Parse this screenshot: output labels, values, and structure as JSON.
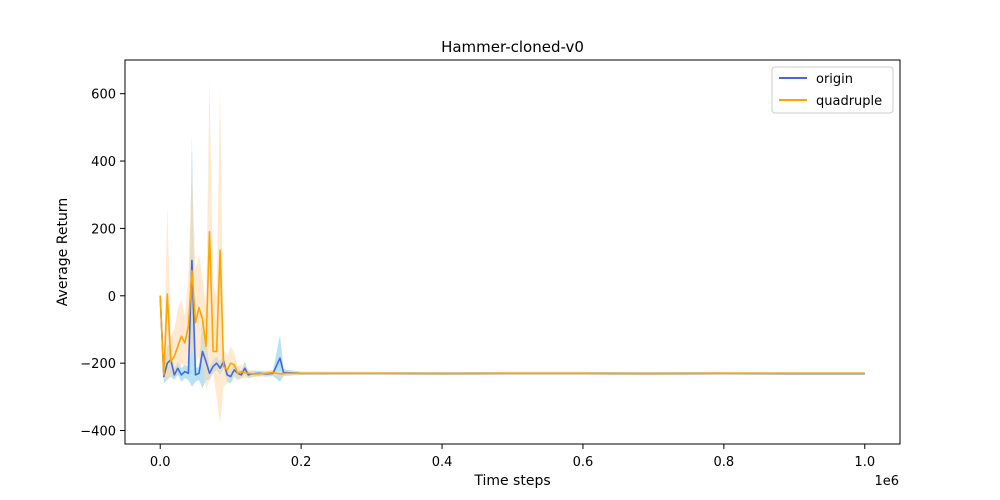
{
  "chart_data": {
    "type": "line",
    "title": "Hammer-cloned-v0",
    "xlabel": "Time steps",
    "ylabel": "Average Return",
    "x_offset_label": "1e6",
    "xlim": [
      -0.05,
      1.05
    ],
    "ylim": [
      -440,
      700
    ],
    "x_ticks": [
      0.0,
      0.2,
      0.4,
      0.6,
      0.8,
      1.0
    ],
    "x_tick_labels": [
      "0.0",
      "0.2",
      "0.4",
      "0.6",
      "0.8",
      "1.0"
    ],
    "y_ticks": [
      -400,
      -200,
      0,
      200,
      400,
      600
    ],
    "y_tick_labels": [
      "−400",
      "−200",
      "0",
      "200",
      "400",
      "600"
    ],
    "grid": false,
    "legend_position": "top-right",
    "series": [
      {
        "name": "origin",
        "color": "#4169e1",
        "band_color": "#87ceeb",
        "points": [
          [
            0.0,
            0
          ],
          [
            0.005,
            -240
          ],
          [
            0.01,
            -200
          ],
          [
            0.015,
            -190
          ],
          [
            0.02,
            -235
          ],
          [
            0.025,
            -215
          ],
          [
            0.03,
            -235
          ],
          [
            0.035,
            -225
          ],
          [
            0.04,
            -230
          ],
          [
            0.045,
            105
          ],
          [
            0.05,
            -235
          ],
          [
            0.055,
            -230
          ],
          [
            0.06,
            -165
          ],
          [
            0.065,
            -195
          ],
          [
            0.07,
            -230
          ],
          [
            0.075,
            -210
          ],
          [
            0.08,
            -200
          ],
          [
            0.085,
            -215
          ],
          [
            0.09,
            -195
          ],
          [
            0.095,
            -235
          ],
          [
            0.1,
            -240
          ],
          [
            0.105,
            -220
          ],
          [
            0.11,
            -230
          ],
          [
            0.115,
            -235
          ],
          [
            0.12,
            -215
          ],
          [
            0.125,
            -235
          ],
          [
            0.13,
            -232
          ],
          [
            0.14,
            -230
          ],
          [
            0.15,
            -232
          ],
          [
            0.16,
            -230
          ],
          [
            0.17,
            -185
          ],
          [
            0.175,
            -228
          ],
          [
            0.2,
            -230
          ],
          [
            0.3,
            -230
          ],
          [
            0.4,
            -231
          ],
          [
            0.5,
            -230
          ],
          [
            0.6,
            -230
          ],
          [
            0.7,
            -231
          ],
          [
            0.8,
            -230
          ],
          [
            0.9,
            -231
          ],
          [
            1.0,
            -231
          ]
        ],
        "band": [
          [
            0.0,
            0,
            0
          ],
          [
            0.005,
            -260,
            -220
          ],
          [
            0.01,
            -250,
            -150
          ],
          [
            0.015,
            -240,
            -140
          ],
          [
            0.02,
            -250,
            -215
          ],
          [
            0.025,
            -235,
            -195
          ],
          [
            0.03,
            -255,
            -215
          ],
          [
            0.035,
            -245,
            -205
          ],
          [
            0.04,
            -250,
            -210
          ],
          [
            0.045,
            -270,
            480
          ],
          [
            0.05,
            -255,
            -215
          ],
          [
            0.055,
            -250,
            -210
          ],
          [
            0.06,
            -275,
            -50
          ],
          [
            0.065,
            -250,
            -130
          ],
          [
            0.07,
            -250,
            -210
          ],
          [
            0.075,
            -230,
            -190
          ],
          [
            0.08,
            -220,
            -180
          ],
          [
            0.085,
            -235,
            -195
          ],
          [
            0.09,
            -215,
            -175
          ],
          [
            0.095,
            -255,
            -215
          ],
          [
            0.1,
            -260,
            -220
          ],
          [
            0.105,
            -240,
            -200
          ],
          [
            0.11,
            -250,
            -210
          ],
          [
            0.115,
            -245,
            -225
          ],
          [
            0.12,
            -235,
            -195
          ],
          [
            0.125,
            -245,
            -225
          ],
          [
            0.13,
            -242,
            -222
          ],
          [
            0.14,
            -238,
            -222
          ],
          [
            0.15,
            -240,
            -224
          ],
          [
            0.16,
            -238,
            -222
          ],
          [
            0.17,
            -255,
            -115
          ],
          [
            0.175,
            -238,
            -218
          ],
          [
            0.2,
            -235,
            -225
          ],
          [
            0.3,
            -234,
            -226
          ],
          [
            0.4,
            -235,
            -227
          ],
          [
            0.5,
            -234,
            -226
          ],
          [
            0.6,
            -234,
            -226
          ],
          [
            0.7,
            -235,
            -227
          ],
          [
            0.8,
            -234,
            -226
          ],
          [
            0.9,
            -235,
            -227
          ],
          [
            1.0,
            -235,
            -227
          ]
        ]
      },
      {
        "name": "quadruple",
        "color": "#ffa500",
        "band_color": "#ffdab0",
        "points": [
          [
            0.0,
            0
          ],
          [
            0.005,
            -235
          ],
          [
            0.01,
            5
          ],
          [
            0.015,
            -195
          ],
          [
            0.02,
            -180
          ],
          [
            0.025,
            -150
          ],
          [
            0.03,
            -120
          ],
          [
            0.035,
            -140
          ],
          [
            0.04,
            -90
          ],
          [
            0.045,
            75
          ],
          [
            0.05,
            -80
          ],
          [
            0.055,
            -35
          ],
          [
            0.06,
            -70
          ],
          [
            0.065,
            -150
          ],
          [
            0.07,
            190
          ],
          [
            0.075,
            -165
          ],
          [
            0.08,
            -165
          ],
          [
            0.085,
            135
          ],
          [
            0.09,
            -210
          ],
          [
            0.095,
            -220
          ],
          [
            0.1,
            -200
          ],
          [
            0.105,
            -205
          ],
          [
            0.11,
            -230
          ],
          [
            0.115,
            -225
          ],
          [
            0.12,
            -228
          ],
          [
            0.13,
            -232
          ],
          [
            0.14,
            -232
          ],
          [
            0.15,
            -230
          ],
          [
            0.16,
            -228
          ],
          [
            0.17,
            -232
          ],
          [
            0.18,
            -230
          ],
          [
            0.2,
            -230
          ],
          [
            0.3,
            -230
          ],
          [
            0.4,
            -231
          ],
          [
            0.5,
            -230
          ],
          [
            0.6,
            -230
          ],
          [
            0.7,
            -231
          ],
          [
            0.8,
            -230
          ],
          [
            0.9,
            -230
          ],
          [
            1.0,
            -230
          ]
        ],
        "band": [
          [
            0.0,
            0,
            0
          ],
          [
            0.005,
            -250,
            -215
          ],
          [
            0.01,
            -250,
            270
          ],
          [
            0.015,
            -240,
            -120
          ],
          [
            0.02,
            -230,
            -100
          ],
          [
            0.025,
            -230,
            -40
          ],
          [
            0.03,
            -200,
            -10
          ],
          [
            0.035,
            -210,
            -60
          ],
          [
            0.04,
            -200,
            60
          ],
          [
            0.045,
            -160,
            380
          ],
          [
            0.05,
            -200,
            80
          ],
          [
            0.055,
            -180,
            120
          ],
          [
            0.06,
            -200,
            50
          ],
          [
            0.065,
            -280,
            -40
          ],
          [
            0.07,
            -250,
            640
          ],
          [
            0.075,
            -230,
            30
          ],
          [
            0.08,
            -300,
            0
          ],
          [
            0.085,
            -380,
            620
          ],
          [
            0.09,
            -270,
            -160
          ],
          [
            0.095,
            -260,
            -180
          ],
          [
            0.1,
            -240,
            -150
          ],
          [
            0.105,
            -240,
            -170
          ],
          [
            0.11,
            -250,
            -210
          ],
          [
            0.115,
            -245,
            -205
          ],
          [
            0.12,
            -245,
            -210
          ],
          [
            0.13,
            -240,
            -224
          ],
          [
            0.14,
            -240,
            -224
          ],
          [
            0.15,
            -238,
            -222
          ],
          [
            0.16,
            -236,
            -220
          ],
          [
            0.17,
            -240,
            -224
          ],
          [
            0.18,
            -238,
            -222
          ],
          [
            0.2,
            -234,
            -226
          ],
          [
            0.3,
            -234,
            -226
          ],
          [
            0.4,
            -235,
            -227
          ],
          [
            0.5,
            -234,
            -226
          ],
          [
            0.6,
            -234,
            -226
          ],
          [
            0.7,
            -235,
            -227
          ],
          [
            0.8,
            -234,
            -226
          ],
          [
            0.9,
            -234,
            -226
          ],
          [
            1.0,
            -234,
            -226
          ]
        ]
      }
    ]
  }
}
